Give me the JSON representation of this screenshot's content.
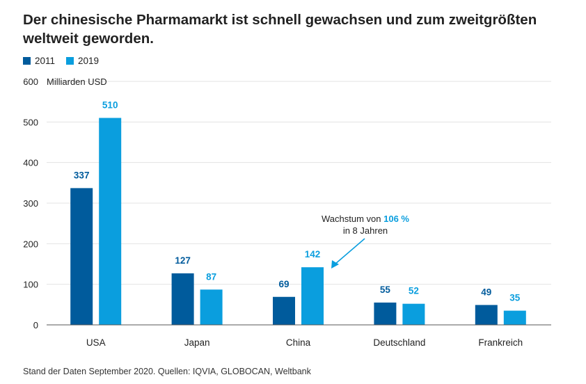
{
  "title_text": "Der chinesische Pharmamarkt ist schnell gewachsen und zum zweitgrößten weltweit geworden.",
  "footer": "Stand der Daten September 2020. Quellen: IQVIA, GLOBOCAN, Weltbank",
  "colors": {
    "2011": "#005b9c",
    "2019": "#0a9ede",
    "grid": "#e3e3e3",
    "axis": "#555555"
  },
  "annotation": {
    "line1_prefix": "Wachstum von ",
    "line1_highlight": "106 %",
    "line2": "in 8 Jahren"
  },
  "chart_data": {
    "type": "bar",
    "title": "Der chinesische Pharmamarkt ist schnell gewachsen und zum zweitgrößten weltweit geworden.",
    "ylabel": "Milliarden USD",
    "xlabel": "",
    "ylim": [
      0,
      600
    ],
    "yticks": [
      0,
      100,
      200,
      300,
      400,
      500,
      600
    ],
    "grid": true,
    "legend": "top-left",
    "categories": [
      "USA",
      "Japan",
      "China",
      "Deutschland",
      "Frankreich"
    ],
    "series": [
      {
        "name": "2011",
        "values": [
          337,
          127,
          69,
          55,
          49
        ]
      },
      {
        "name": "2019",
        "values": [
          510,
          87,
          142,
          52,
          35
        ]
      }
    ]
  }
}
